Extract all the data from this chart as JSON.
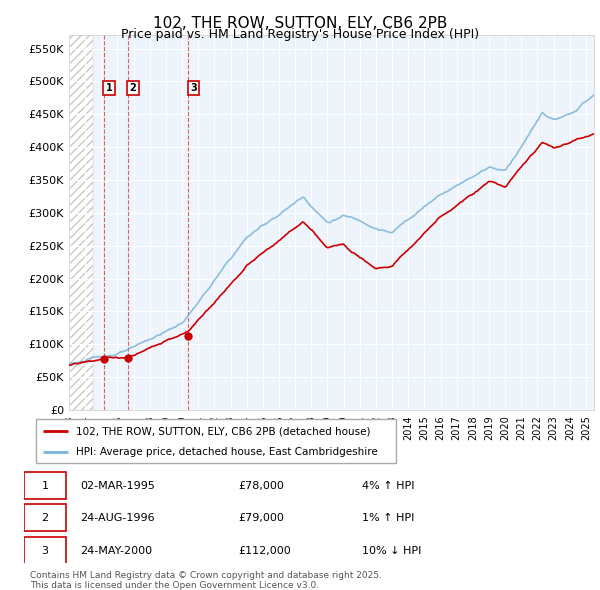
{
  "title": "102, THE ROW, SUTTON, ELY, CB6 2PB",
  "subtitle": "Price paid vs. HM Land Registry's House Price Index (HPI)",
  "ylabel_ticks": [
    "£0",
    "£50K",
    "£100K",
    "£150K",
    "£200K",
    "£250K",
    "£300K",
    "£350K",
    "£400K",
    "£450K",
    "£500K",
    "£550K"
  ],
  "ytick_values": [
    0,
    50000,
    100000,
    150000,
    200000,
    250000,
    300000,
    350000,
    400000,
    450000,
    500000,
    550000
  ],
  "ylim": [
    0,
    570000
  ],
  "xmin": 1993.0,
  "xmax": 2025.5,
  "sale_dates": [
    1995.17,
    1996.65,
    2000.39
  ],
  "sale_prices": [
    78000,
    79000,
    112000
  ],
  "sale_labels": [
    "1",
    "2",
    "3"
  ],
  "legend_line1": "102, THE ROW, SUTTON, ELY, CB6 2PB (detached house)",
  "legend_line2": "HPI: Average price, detached house, East Cambridgeshire",
  "table_rows": [
    [
      "1",
      "02-MAR-1995",
      "£78,000",
      "4% ↑ HPI"
    ],
    [
      "2",
      "24-AUG-1996",
      "£79,000",
      "1% ↑ HPI"
    ],
    [
      "3",
      "24-MAY-2000",
      "£112,000",
      "10% ↓ HPI"
    ]
  ],
  "footer": "Contains HM Land Registry data © Crown copyright and database right 2025.\nThis data is licensed under the Open Government Licence v3.0.",
  "price_line_color": "#cc0000",
  "hpi_line_color": "#7ab4d8",
  "grid_color": "#cccccc",
  "hatch_color": "#c8c8c8",
  "bg_color": "#eef4fb"
}
